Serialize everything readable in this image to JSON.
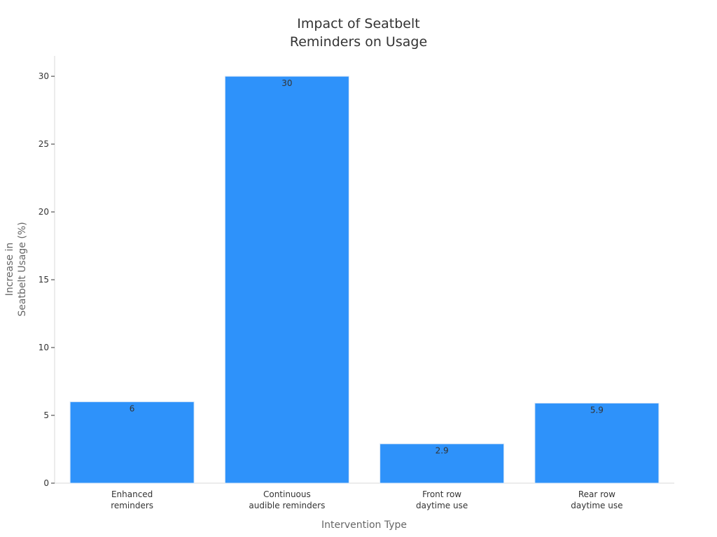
{
  "chart_data": {
    "type": "bar",
    "title_lines": [
      "Impact of Seatbelt",
      "Reminders on Usage"
    ],
    "xlabel": "Intervention Type",
    "ylabel_lines": [
      "Increase in",
      "Seatbelt Usage (%)"
    ],
    "categories": [
      [
        "Enhanced",
        "reminders"
      ],
      [
        "Continuous",
        "audible reminders"
      ],
      [
        "Front row",
        "daytime use"
      ],
      [
        "Rear row",
        "daytime use"
      ]
    ],
    "values": [
      6,
      30,
      2.9,
      5.9
    ],
    "data_labels": [
      "6",
      "30",
      "2.9",
      "5.9"
    ],
    "ylim": [
      0,
      31.5
    ],
    "yticks": [
      0,
      5,
      10,
      15,
      20,
      25,
      30
    ],
    "grid": false,
    "legend": "none",
    "bar_color": "#2E92FA"
  }
}
